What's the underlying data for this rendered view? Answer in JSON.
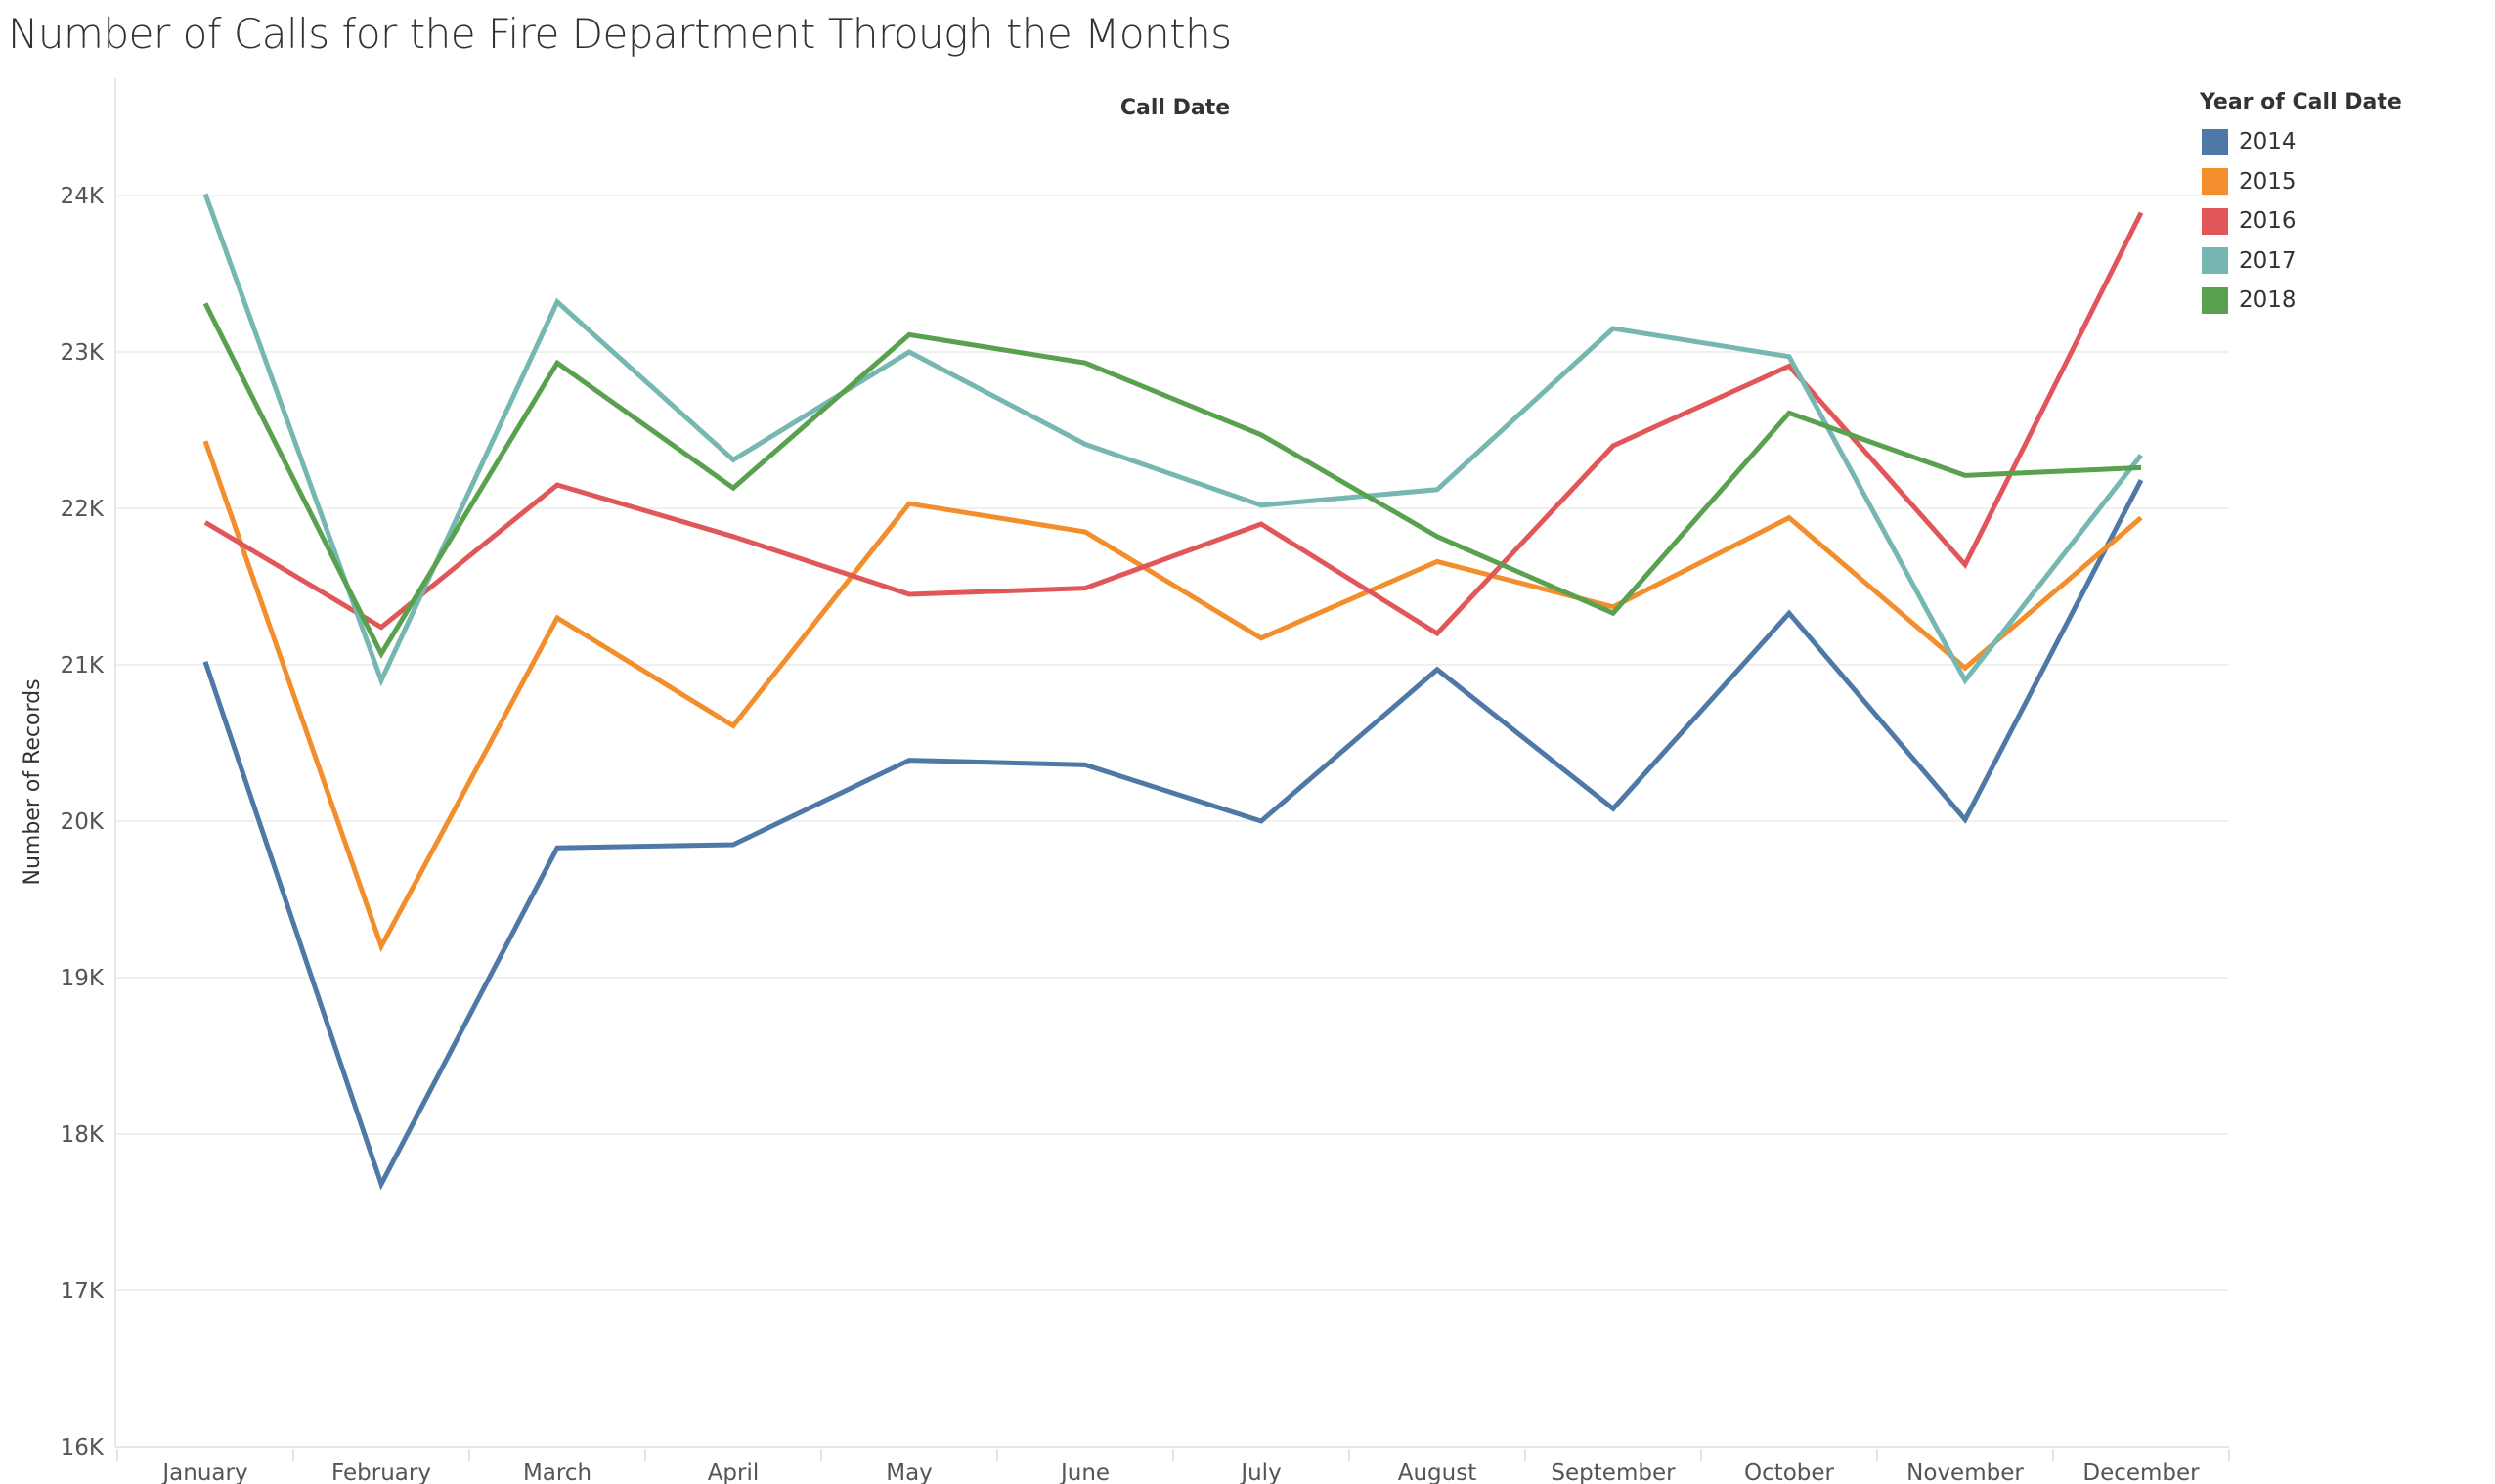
{
  "chart_data": {
    "type": "line",
    "title": "Number of Calls for the Fire Department Through the Months",
    "top_axis_label": "Call Date",
    "xlabel": "",
    "ylabel": "Number of Records",
    "categories": [
      "January",
      "February",
      "March",
      "April",
      "May",
      "June",
      "July",
      "August",
      "September",
      "October",
      "November",
      "December"
    ],
    "ylim": [
      16000,
      24500
    ],
    "yticks": [
      16000,
      17000,
      18000,
      19000,
      20000,
      21000,
      22000,
      23000,
      24000
    ],
    "ytick_labels": [
      "16K",
      "17K",
      "18K",
      "19K",
      "20K",
      "21K",
      "22K",
      "23K",
      "24K"
    ],
    "grid": true,
    "legend": {
      "title": "Year of Call Date",
      "placement": "right"
    },
    "series": [
      {
        "name": "2014",
        "color": "#4e79a7",
        "values": [
          21020,
          17680,
          19830,
          19850,
          20390,
          20360,
          20000,
          20970,
          20080,
          21330,
          20010,
          22180
        ]
      },
      {
        "name": "2015",
        "color": "#f28e2b",
        "values": [
          22430,
          19200,
          21300,
          20610,
          22030,
          21850,
          21170,
          21660,
          21370,
          21940,
          20980,
          21940
        ]
      },
      {
        "name": "2016",
        "color": "#e15759",
        "values": [
          21910,
          21240,
          22150,
          21820,
          21450,
          21490,
          21900,
          21200,
          22400,
          22910,
          21640,
          23890
        ]
      },
      {
        "name": "2017",
        "color": "#76b7b2",
        "values": [
          24010,
          20900,
          23320,
          22310,
          23000,
          22410,
          22020,
          22120,
          23150,
          22970,
          20900,
          22340
        ]
      },
      {
        "name": "2018",
        "color": "#59a14f",
        "values": [
          23310,
          21070,
          22930,
          22130,
          23110,
          22930,
          22470,
          21820,
          21330,
          22610,
          22210,
          22260
        ]
      }
    ]
  }
}
